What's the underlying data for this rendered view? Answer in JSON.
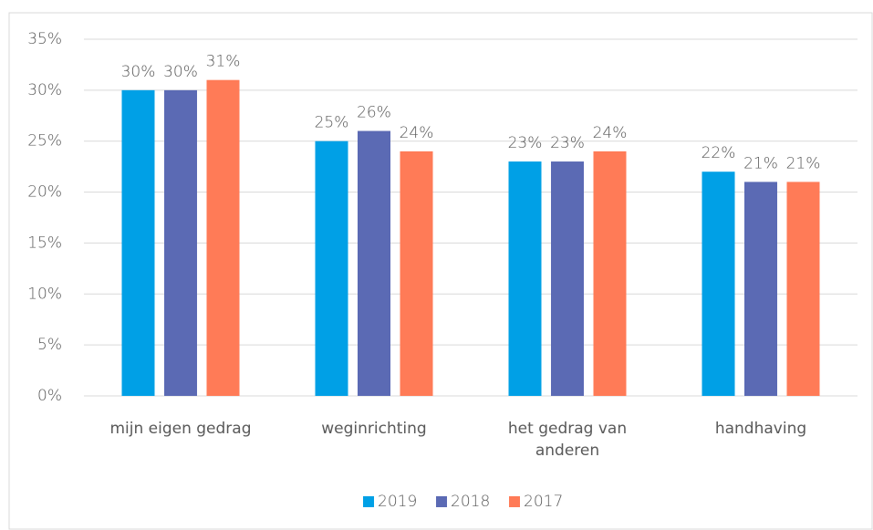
{
  "chart_data": {
    "type": "bar",
    "categories": [
      "mijn eigen gedrag",
      "weginrichting",
      "het gedrag van anderen",
      "handhaving"
    ],
    "series": [
      {
        "name": "2019",
        "color": "#00a0e6",
        "values": [
          30,
          25,
          23,
          22
        ],
        "value_labels": [
          "30%",
          "25%",
          "23%",
          "22%"
        ]
      },
      {
        "name": "2018",
        "color": "#5b6ab4",
        "values": [
          30,
          26,
          23,
          21
        ],
        "value_labels": [
          "30%",
          "26%",
          "23%",
          "21%"
        ]
      },
      {
        "name": "2017",
        "color": "#ff7b57",
        "values": [
          31,
          24,
          24,
          21
        ],
        "value_labels": [
          "31%",
          "24%",
          "24%",
          "21%"
        ]
      }
    ],
    "ylim": [
      0,
      35
    ],
    "yticks": [
      {
        "value": 0,
        "label": "0%"
      },
      {
        "value": 5,
        "label": "5%"
      },
      {
        "value": 10,
        "label": "10%"
      },
      {
        "value": 15,
        "label": "15%"
      },
      {
        "value": 20,
        "label": "20%"
      },
      {
        "value": 25,
        "label": "25%"
      },
      {
        "value": 30,
        "label": "30%"
      },
      {
        "value": 35,
        "label": "35%"
      }
    ],
    "grid": true,
    "legend": "bottom"
  }
}
